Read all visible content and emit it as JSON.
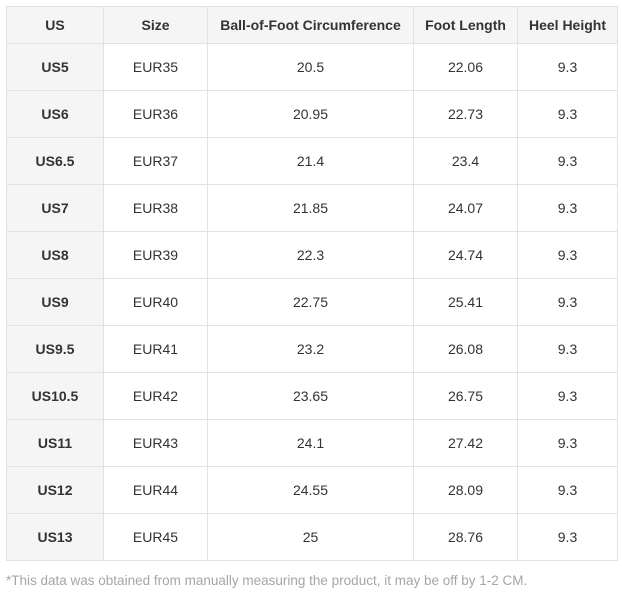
{
  "chart_data": {
    "type": "table",
    "columns": [
      "US",
      "Size",
      "Ball-of-Foot Circumference",
      "Foot Length",
      "Heel Height"
    ],
    "rows": [
      [
        "US5",
        "EUR35",
        "20.5",
        "22.06",
        "9.3"
      ],
      [
        "US6",
        "EUR36",
        "20.95",
        "22.73",
        "9.3"
      ],
      [
        "US6.5",
        "EUR37",
        "21.4",
        "23.4",
        "9.3"
      ],
      [
        "US7",
        "EUR38",
        "21.85",
        "24.07",
        "9.3"
      ],
      [
        "US8",
        "EUR39",
        "22.3",
        "24.74",
        "9.3"
      ],
      [
        "US9",
        "EUR40",
        "22.75",
        "25.41",
        "9.3"
      ],
      [
        "US9.5",
        "EUR41",
        "23.2",
        "26.08",
        "9.3"
      ],
      [
        "US10.5",
        "EUR42",
        "23.65",
        "26.75",
        "9.3"
      ],
      [
        "US11",
        "EUR43",
        "24.1",
        "27.42",
        "9.3"
      ],
      [
        "US12",
        "EUR44",
        "24.55",
        "28.09",
        "9.3"
      ],
      [
        "US13",
        "EUR45",
        "25",
        "28.76",
        "9.3"
      ]
    ],
    "title": "",
    "legend": "none",
    "grid": "full cell borders"
  },
  "footnote": "*This data was obtained from manually measuring the product, it may be off by 1-2 CM.",
  "colors": {
    "header_bg": "#f5f5f5",
    "row_header_bg": "#f5f5f5",
    "cell_bg": "#ffffff",
    "border": "#e2e2e2",
    "text": "#333333",
    "footnote_text": "#a6a6a6"
  }
}
